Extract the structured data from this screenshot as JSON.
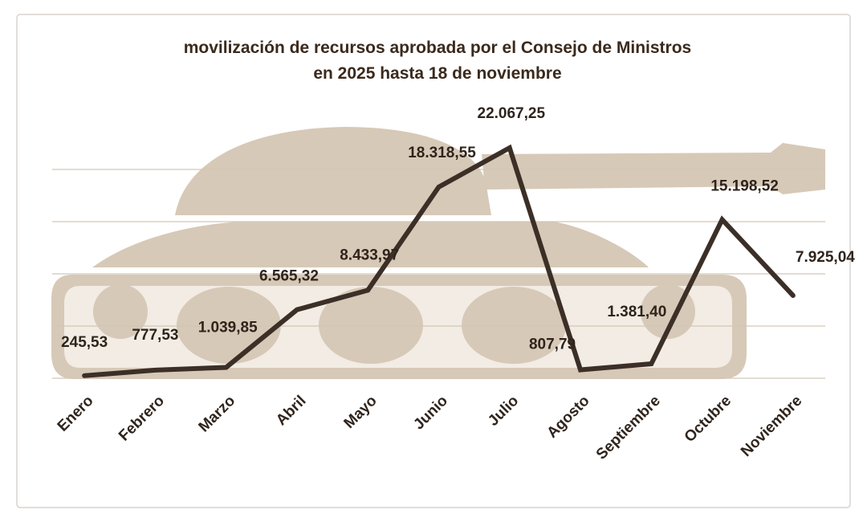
{
  "chart_data": {
    "type": "line",
    "title": [
      "movilización de recursos aprobada por el Consejo de Ministros",
      "en 2025 hasta 18  de noviembre"
    ],
    "categories": [
      "Enero",
      "Febrero",
      "Marzo",
      "Abril",
      "Mayo",
      "Junio",
      "Julio",
      "Agosto",
      "Septiembre",
      "Octubre",
      "Noviembre"
    ],
    "values": [
      245.53,
      777.53,
      1039.85,
      6565.32,
      8433.97,
      18318.55,
      22067.25,
      807.79,
      1381.4,
      15198.52,
      7925.04
    ],
    "value_labels": [
      "245,53",
      "777,53",
      "1.039,85",
      "6.565,32",
      "8.433,97",
      "18.318,55",
      "22.067,25",
      "807,79",
      "1.381,40",
      "15.198,52",
      "7.925,04"
    ],
    "color": "#3b2f27",
    "ylim": [
      0,
      25000
    ],
    "yticks": [
      0,
      5000,
      10000,
      15000,
      20000
    ],
    "grid": true
  }
}
